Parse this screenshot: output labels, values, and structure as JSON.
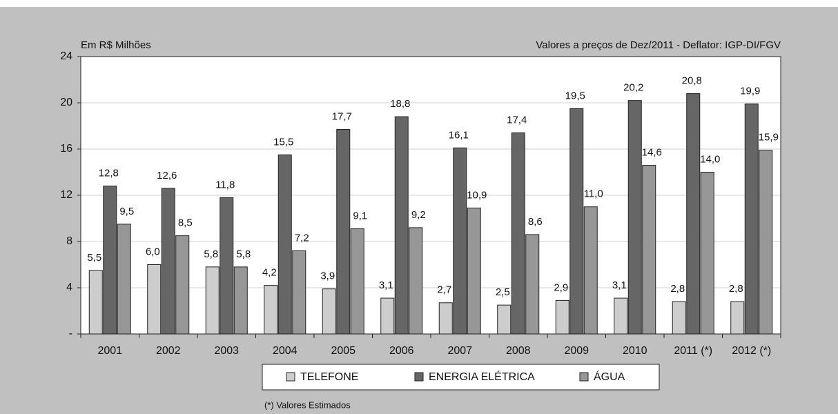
{
  "chart_data": {
    "type": "bar",
    "y_label": "Em R$ Milhões",
    "subtitle": "Valores a preços de Dez/2011 - Deflator: IGP-DI/FGV",
    "note": "(*) Valores Estimados",
    "categories": [
      "2001",
      "2002",
      "2003",
      "2004",
      "2005",
      "2006",
      "2007",
      "2008",
      "2009",
      "2010",
      "2011 (*)",
      "2012 (*)"
    ],
    "series": [
      {
        "name": "TELEFONE",
        "color": "#cdcdcd",
        "values": [
          5.5,
          6.0,
          5.8,
          4.2,
          3.9,
          3.1,
          2.7,
          2.5,
          2.9,
          3.1,
          2.8,
          2.8
        ],
        "value_labels": [
          "5,5",
          "6,0",
          "5,8",
          "4,2",
          "3,9",
          "3,1",
          "2,7",
          "2,5",
          "2,9",
          "3,1",
          "2,8",
          "2,8"
        ]
      },
      {
        "name": "ENERGIA ELÉTRICA",
        "color": "#666666",
        "values": [
          12.8,
          12.6,
          11.8,
          15.5,
          17.7,
          18.8,
          16.1,
          17.4,
          19.5,
          20.2,
          20.8,
          19.9
        ],
        "value_labels": [
          "12,8",
          "12,6",
          "11,8",
          "15,5",
          "17,7",
          "18,8",
          "16,1",
          "17,4",
          "19,5",
          "20,2",
          "20,8",
          "19,9"
        ]
      },
      {
        "name": "ÁGUA",
        "color": "#979797",
        "values": [
          9.5,
          8.5,
          5.8,
          7.2,
          9.1,
          9.2,
          10.9,
          8.6,
          11.0,
          14.6,
          14.0,
          15.9
        ],
        "value_labels": [
          "9,5",
          "8,5",
          "5,8",
          "7,2",
          "9,1",
          "9,2",
          "10,9",
          "8,6",
          "11,0",
          "14,6",
          "14,0",
          "15,9"
        ]
      }
    ],
    "ylim": [
      0,
      24
    ],
    "yticks": [
      {
        "value": 0,
        "label": "-"
      },
      4,
      8,
      12,
      16,
      20,
      24
    ],
    "grid": true
  }
}
